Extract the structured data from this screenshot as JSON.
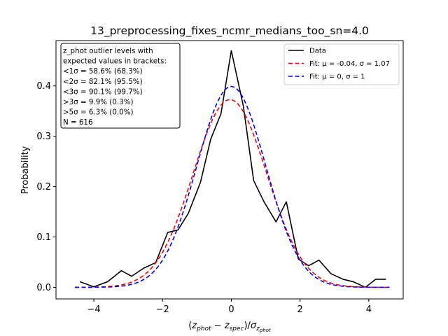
{
  "chart_data": {
    "type": "line",
    "title": "13_preprocessing_fixes_ncmr_medians_too_sn=4.0",
    "xlabel": "(z_phot − z_spec)/σ_z_phot",
    "ylabel": "Probability",
    "xlim": [
      -5.1,
      5.0
    ],
    "ylim": [
      -0.023,
      0.49
    ],
    "xticks": [
      -4,
      -2,
      0,
      2,
      4
    ],
    "xtick_labels": [
      "−4",
      "−2",
      "0",
      "2",
      "4"
    ],
    "yticks": [
      0.0,
      0.1,
      0.2,
      0.3,
      0.4
    ],
    "ytick_labels": [
      "0.0",
      "0.1",
      "0.2",
      "0.3",
      "0.4"
    ],
    "grid": false,
    "legend_position": "upper right",
    "series": [
      {
        "name": "Data",
        "color": "#000000",
        "style": "solid",
        "x": [
          -4.4,
          -4.0,
          -3.6,
          -3.2,
          -2.9,
          -2.55,
          -2.2,
          -1.85,
          -1.55,
          -1.25,
          -0.9,
          -0.6,
          -0.3,
          0.0,
          0.35,
          0.65,
          0.95,
          1.3,
          1.6,
          1.95,
          2.25,
          2.55,
          2.9,
          3.25,
          3.55,
          3.9,
          4.2,
          4.5
        ],
        "y": [
          0.011,
          0.001,
          0.011,
          0.033,
          0.022,
          0.038,
          0.049,
          0.109,
          0.114,
          0.147,
          0.208,
          0.294,
          0.345,
          0.47,
          0.36,
          0.212,
          0.17,
          0.13,
          0.17,
          0.056,
          0.043,
          0.054,
          0.027,
          0.016,
          0.011,
          0.0,
          0.016,
          0.016
        ]
      },
      {
        "name": "Fit: μ = -0.04, σ = 1.07",
        "color": "#ff0000",
        "style": "dashed",
        "gauss": {
          "mu": -0.04,
          "sigma": 1.07,
          "xmin": -4.55,
          "xmax": 4.6
        }
      },
      {
        "name": "Fit: μ = 0, σ = 1",
        "color": "#0000ff",
        "style": "dashed",
        "gauss": {
          "mu": 0,
          "sigma": 1,
          "xmin": -4.55,
          "xmax": 4.6
        }
      }
    ],
    "annotation": {
      "lines": [
        "z_phot outlier levels with",
        " expected values in brackets:",
        "<1σ = 58.6% (68.3%)",
        "<2σ = 82.1% (95.5%)",
        "<3σ = 90.1% (99.7%)",
        ">3σ = 9.9% (0.3%)",
        ">5σ = 6.3% (0.0%)",
        "N = 616"
      ]
    }
  }
}
